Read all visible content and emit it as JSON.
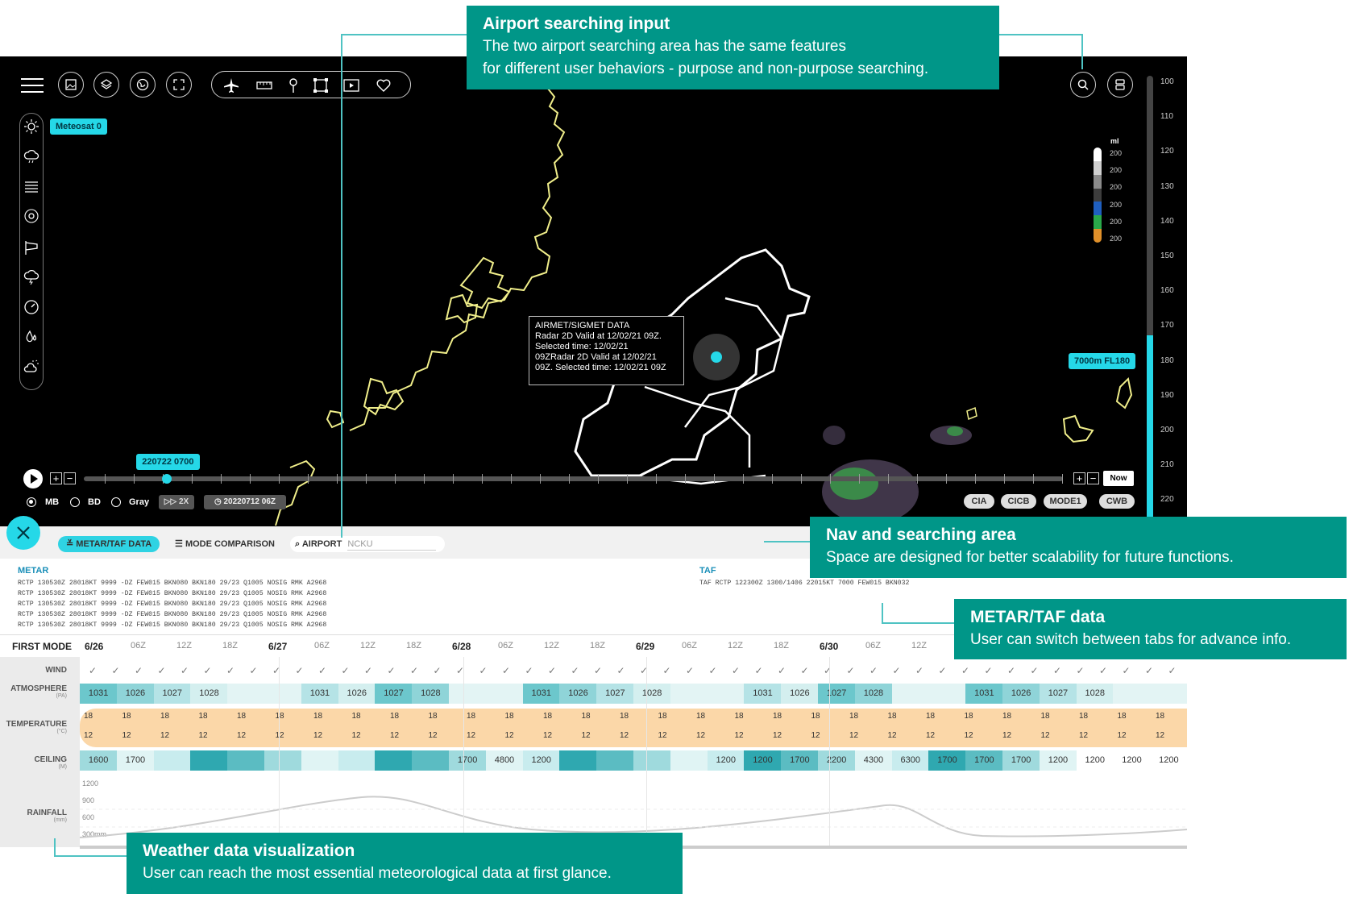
{
  "callouts": {
    "airport": {
      "title": "Airport searching input",
      "line1": "The two airport searching area has the same features",
      "line2": "for different user behaviors - purpose and non-purpose searching."
    },
    "nav": {
      "title": "Nav and searching area",
      "desc": "Space are designed for better scalability for future functions."
    },
    "metar": {
      "title": "METAR/TAF data",
      "desc": "User can switch between tabs for advance info."
    },
    "weather": {
      "title": "Weather data visualization",
      "desc": "User can reach the most essential meteorological data at first glance."
    }
  },
  "map": {
    "satellite_tag": "Meteosat 0",
    "popup": [
      "AIRMET/SIGMET DATA",
      "Radar 2D Valid at 12/02/21 09Z.",
      "Selected time:  12/02/21",
      "09ZRadar 2D Valid at 12/02/21",
      "09Z. Selected time:  12/02/21 09Z"
    ],
    "time_tag": "220722 0700",
    "now_button": "Now",
    "flight_level_tag": "7000m FL180",
    "altitude_ticks": [
      "100",
      "110",
      "120",
      "130",
      "140",
      "150",
      "160",
      "170",
      "180",
      "190",
      "200",
      "210",
      "220"
    ],
    "altitude_level": 0.42,
    "legend_unit": "ml",
    "legend_values": [
      "200",
      "200",
      "200",
      "200",
      "200",
      "200"
    ],
    "legend_colors": [
      "#ffffff",
      "#cfcfcf",
      "#8a8a8a",
      "#3d3d3d",
      "#1f5fbf",
      "#2aa84a",
      "#e0902a"
    ],
    "timeline_position": 0.085,
    "radio_options": [
      {
        "label": "MB",
        "selected": true
      },
      {
        "label": "BD",
        "selected": false
      },
      {
        "label": "Gray",
        "selected": false
      }
    ],
    "speed_button": "2X",
    "date_button": "20220712 06Z",
    "source_pills": [
      "CIA",
      "CICB",
      "MODE1",
      "CWB"
    ]
  },
  "panel": {
    "tabs": {
      "metar_taf": "METAR/TAF DATA",
      "mode_comparison": "MODE COMPARISON",
      "airport": "AIRPORT",
      "airport_placeholder": "NCKU"
    },
    "metar_title": "METAR",
    "metar_lines": [
      "RCTP 130530Z 28018KT 9999 -DZ FEW015 BKN080 BKN180 29/23 Q1005 NOSIG RMK A2968",
      "RCTP 130530Z 28018KT 9999 -DZ FEW015 BKN080 BKN180 29/23 Q1005 NOSIG RMK A2968",
      "RCTP 130530Z 28018KT 9999 -DZ FEW015 BKN080 BKN180 29/23 Q1005 NOSIG RMK A2968",
      "RCTP 130530Z 28018KT 9999 -DZ FEW015 BKN080 BKN180 29/23 Q1005 NOSIG RMK A2968",
      "RCTP 130530Z 28018KT 9999 -DZ FEW015 BKN080 BKN180 29/23 Q1005 NOSIG RMK A2968"
    ],
    "taf_title": "TAF",
    "taf_line": "TAF RCTP 122300Z 1300/1406 22015KT 7000 FEW015 BKN032",
    "mode_title": "FIRST MODE",
    "time_headers": [
      "6/26",
      "06Z",
      "12Z",
      "18Z",
      "6/27",
      "06Z",
      "12Z",
      "18Z",
      "6/28",
      "06Z",
      "12Z",
      "18Z",
      "6/29",
      "06Z",
      "12Z",
      "18Z",
      "6/30",
      "06Z",
      "12Z"
    ],
    "rows": {
      "wind": "WIND",
      "atmosphere": "ATMOSPHERE",
      "atmosphere_unit": "(PA)",
      "temperature": "TEMPERATURE",
      "temperature_unit": "(°C)",
      "ceiling": "CEILING",
      "ceiling_unit": "(M)",
      "rainfall": "RAINFALL",
      "rainfall_unit": "(mm)"
    },
    "atmosphere_values": [
      "1031",
      "1026",
      "1027",
      "1028",
      "",
      "",
      "1031",
      "1026",
      "1027",
      "1028",
      "",
      "",
      "1031",
      "1026",
      "1027",
      "1028",
      "",
      "",
      "1031",
      "1026",
      "1027",
      "1028",
      "",
      "",
      "1031",
      "1026",
      "1027",
      "1028",
      "",
      ""
    ],
    "temp_high": "18",
    "temp_low": "12",
    "ceiling_values": [
      "1600",
      "1700",
      "",
      "",
      "",
      "",
      "",
      "",
      "",
      "",
      "1700",
      "4800",
      "1200",
      "",
      "",
      "",
      "",
      "1200",
      "1200",
      "1700",
      "2200",
      "4300",
      "6300",
      "1700",
      "1700",
      "1700",
      "1200",
      "1200",
      "1200",
      "1200"
    ],
    "rain_axis": [
      "1200",
      "900",
      "600",
      "300mm"
    ]
  }
}
